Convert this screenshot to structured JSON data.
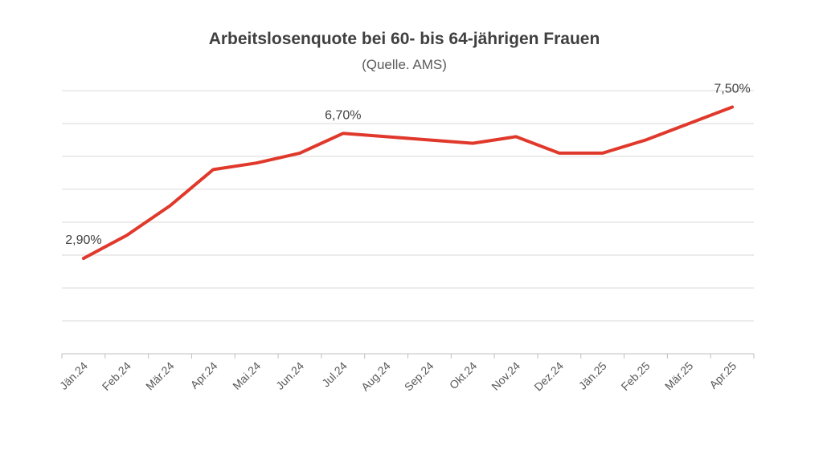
{
  "chart_data": {
    "type": "line",
    "title": "Arbeitslosenquote bei 60- bis 64-jährigen Frauen",
    "subtitle": "(Quelle. AMS)",
    "xlabel": "",
    "ylabel": "",
    "categories": [
      "Jän.24",
      "Feb.24",
      "Mär.24",
      "Apr.24",
      "Mai.24",
      "Jun.24",
      "Jul.24",
      "Aug.24",
      "Sep.24",
      "Okt.24",
      "Nov.24",
      "Dez.24",
      "Jän.25",
      "Feb.25",
      "Mär.25",
      "Apr.25"
    ],
    "series": [
      {
        "values": [
          2.9,
          3.6,
          4.5,
          5.6,
          5.8,
          6.1,
          6.7,
          6.6,
          6.5,
          6.4,
          6.6,
          6.1,
          6.1,
          6.5,
          7.0,
          7.5
        ],
        "color": "#e0392b",
        "data_labels": [
          {
            "index": 0,
            "text": "2,90%"
          },
          {
            "index": 6,
            "text": "6,70%"
          },
          {
            "index": 15,
            "text": "7,50%"
          }
        ]
      }
    ],
    "ylim": [
      0,
      8
    ],
    "grid": true,
    "legend": "none"
  }
}
